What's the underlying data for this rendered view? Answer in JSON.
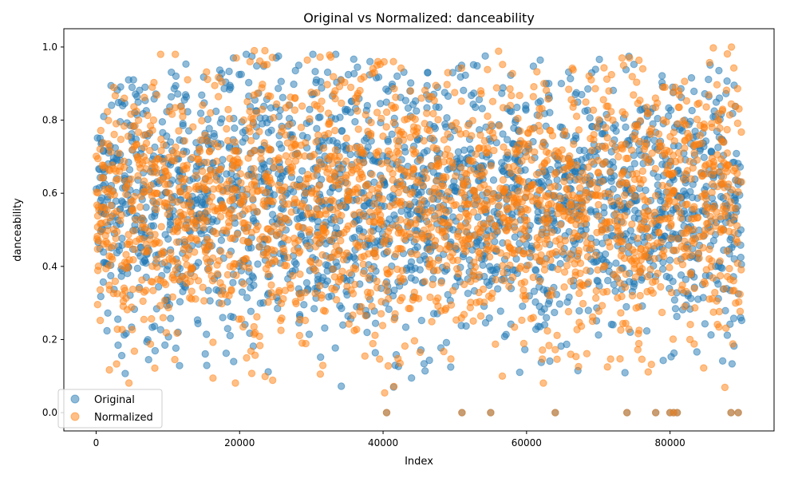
{
  "chart_data": {
    "type": "scatter",
    "title": "Original vs Normalized: danceability",
    "xlabel": "Index",
    "ylabel": "danceability",
    "xlim": [
      -4500,
      94500
    ],
    "ylim": [
      -0.05,
      1.05
    ],
    "xticks": [
      0,
      20000,
      40000,
      60000,
      80000
    ],
    "xtick_labels": [
      "0",
      "20000",
      "40000",
      "60000",
      "80000"
    ],
    "yticks": [
      0.0,
      0.2,
      0.4,
      0.6,
      0.8,
      1.0
    ],
    "ytick_labels": [
      "0.0",
      "0.2",
      "0.4",
      "0.6",
      "0.8",
      "1.0"
    ],
    "grid": false,
    "legend_position": "lower-left",
    "series": [
      {
        "name": "Original",
        "color": "#1f77b4",
        "alpha": 0.5,
        "x_range": [
          0,
          89999
        ],
        "segments": [
          {
            "x": [
              0,
              1500
            ],
            "y_range": [
              0.22,
              0.81
            ]
          },
          {
            "x": [
              1500,
              3500
            ],
            "y_range": [
              0.11,
              0.98
            ]
          },
          {
            "x": [
              3500,
              4500
            ],
            "y_range": [
              0.0,
              0.86
            ]
          },
          {
            "x": [
              4500,
              6000
            ],
            "y_range": [
              0.05,
              0.91
            ]
          },
          {
            "x": [
              6000,
              8000
            ],
            "y_range": [
              0.12,
              0.89
            ]
          },
          {
            "x": [
              8000,
              12000
            ],
            "y_range": [
              0.08,
              0.98
            ]
          },
          {
            "x": [
              12000,
              15000
            ],
            "y_range": [
              0.15,
              0.99
            ]
          },
          {
            "x": [
              15000,
              20000
            ],
            "y_range": [
              0.06,
              0.97
            ]
          },
          {
            "x": [
              20000,
              22000
            ],
            "y_range": [
              0.05,
              0.98
            ]
          },
          {
            "x": [
              22000,
              26000
            ],
            "y_range": [
              0.07,
              0.99
            ]
          },
          {
            "x": [
              26000,
              34000
            ],
            "y_range": [
              0.1,
              0.98
            ]
          },
          {
            "x": [
              34000,
              38000
            ],
            "y_range": [
              0.06,
              0.97
            ]
          },
          {
            "x": [
              38000,
              42000
            ],
            "y_range": [
              0.05,
              0.96
            ]
          },
          {
            "x": [
              42000,
              46000
            ],
            "y_range": [
              0.09,
              0.97
            ]
          },
          {
            "x": [
              46000,
              50000
            ],
            "y_range": [
              0.06,
              0.93
            ]
          },
          {
            "x": [
              50000,
              52000
            ],
            "y_range": [
              0.06,
              0.95
            ]
          },
          {
            "x": [
              52000,
              56000
            ],
            "y_range": [
              0.12,
              0.99
            ]
          },
          {
            "x": [
              56000,
              62000
            ],
            "y_range": [
              0.1,
              0.99
            ]
          },
          {
            "x": [
              62000,
              65000
            ],
            "y_range": [
              0.06,
              0.9
            ]
          },
          {
            "x": [
              65000,
              74000
            ],
            "y_range": [
              0.1,
              0.97
            ]
          },
          {
            "x": [
              74000,
              79000
            ],
            "y_range": [
              0.09,
              0.99
            ]
          },
          {
            "x": [
              79000,
              81000
            ],
            "y_range": [
              0.05,
              0.89
            ]
          },
          {
            "x": [
              81000,
              86000
            ],
            "y_range": [
              0.12,
              0.97
            ]
          },
          {
            "x": [
              86000,
              90000
            ],
            "y_range": [
              0.06,
              1.0
            ]
          }
        ],
        "outliers_at_zero_x": [
          40500,
          51000,
          55000,
          64000,
          74000,
          78000,
          80000,
          80500,
          81000,
          88500,
          89500
        ]
      },
      {
        "name": "Normalized",
        "color": "#ff7f0e",
        "alpha": 0.5,
        "x_range": [
          0,
          89999
        ],
        "segments": [
          {
            "x": [
              0,
              1500
            ],
            "y_range": [
              0.22,
              0.81
            ]
          },
          {
            "x": [
              1500,
              3500
            ],
            "y_range": [
              0.11,
              0.98
            ]
          },
          {
            "x": [
              3500,
              4500
            ],
            "y_range": [
              0.0,
              0.86
            ]
          },
          {
            "x": [
              4500,
              6000
            ],
            "y_range": [
              0.05,
              0.91
            ]
          },
          {
            "x": [
              6000,
              8000
            ],
            "y_range": [
              0.12,
              0.89
            ]
          },
          {
            "x": [
              8000,
              12000
            ],
            "y_range": [
              0.08,
              0.98
            ]
          },
          {
            "x": [
              12000,
              15000
            ],
            "y_range": [
              0.15,
              0.99
            ]
          },
          {
            "x": [
              15000,
              20000
            ],
            "y_range": [
              0.06,
              0.97
            ]
          },
          {
            "x": [
              20000,
              22000
            ],
            "y_range": [
              0.05,
              0.98
            ]
          },
          {
            "x": [
              22000,
              26000
            ],
            "y_range": [
              0.07,
              0.99
            ]
          },
          {
            "x": [
              26000,
              34000
            ],
            "y_range": [
              0.1,
              0.98
            ]
          },
          {
            "x": [
              34000,
              38000
            ],
            "y_range": [
              0.06,
              0.97
            ]
          },
          {
            "x": [
              38000,
              42000
            ],
            "y_range": [
              0.05,
              0.96
            ]
          },
          {
            "x": [
              42000,
              46000
            ],
            "y_range": [
              0.09,
              0.97
            ]
          },
          {
            "x": [
              46000,
              50000
            ],
            "y_range": [
              0.06,
              0.93
            ]
          },
          {
            "x": [
              50000,
              52000
            ],
            "y_range": [
              0.06,
              0.95
            ]
          },
          {
            "x": [
              52000,
              56000
            ],
            "y_range": [
              0.12,
              0.99
            ]
          },
          {
            "x": [
              56000,
              62000
            ],
            "y_range": [
              0.1,
              0.99
            ]
          },
          {
            "x": [
              62000,
              65000
            ],
            "y_range": [
              0.06,
              0.9
            ]
          },
          {
            "x": [
              65000,
              74000
            ],
            "y_range": [
              0.1,
              0.97
            ]
          },
          {
            "x": [
              74000,
              79000
            ],
            "y_range": [
              0.09,
              0.99
            ]
          },
          {
            "x": [
              79000,
              81000
            ],
            "y_range": [
              0.05,
              0.89
            ]
          },
          {
            "x": [
              81000,
              86000
            ],
            "y_range": [
              0.12,
              0.97
            ]
          },
          {
            "x": [
              86000,
              90000
            ],
            "y_range": [
              0.06,
              1.0
            ]
          }
        ],
        "outliers_at_zero_x": [
          40500,
          51000,
          55000,
          64000,
          74000,
          78000,
          80000,
          80500,
          81000,
          88500,
          89500
        ]
      }
    ]
  }
}
